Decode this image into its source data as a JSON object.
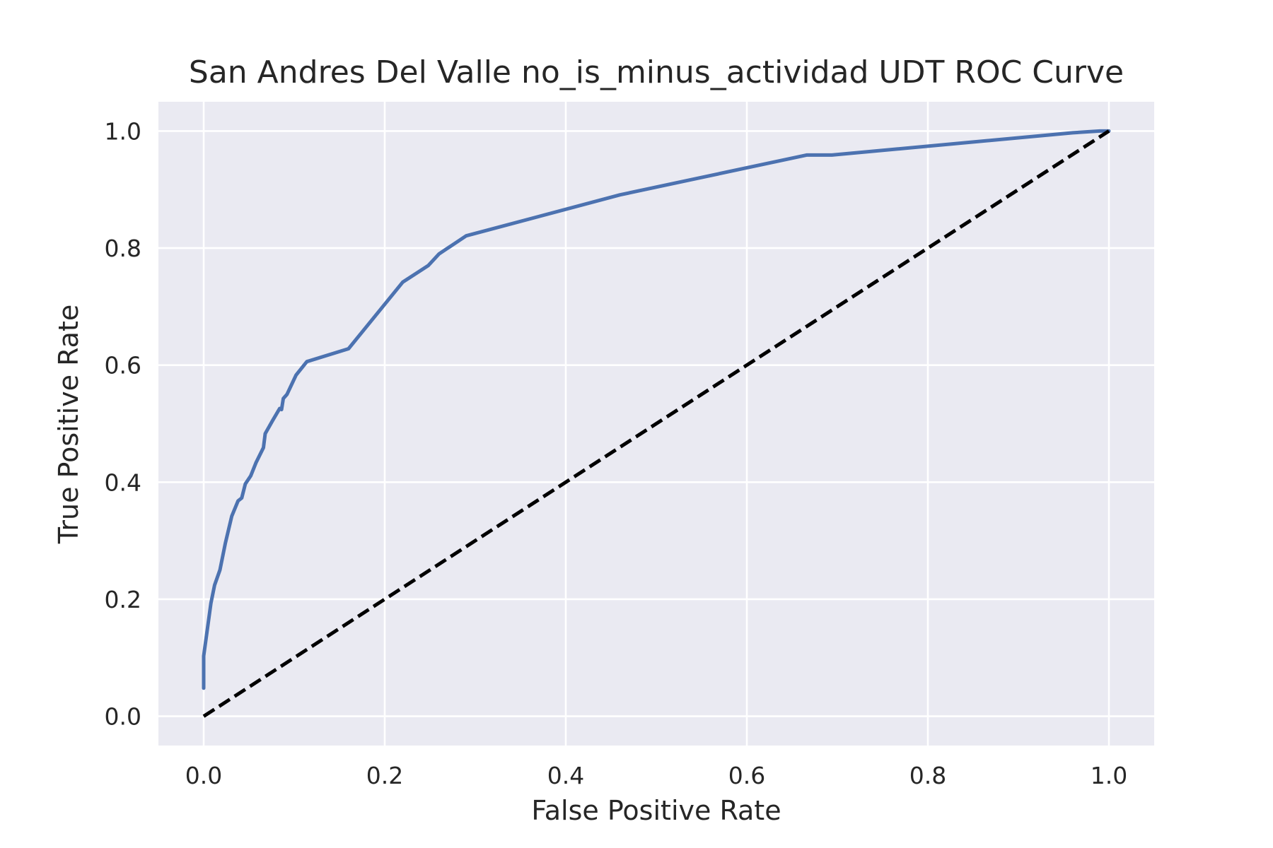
{
  "chart_data": {
    "type": "line",
    "title": "San Andres Del Valle no_is_minus_actividad UDT ROC Curve",
    "xlabel": "False Positive Rate",
    "ylabel": "True Positive Rate",
    "xlim": [
      -0.05,
      1.05
    ],
    "ylim": [
      -0.05,
      1.05
    ],
    "xticks": [
      "0.0",
      "0.2",
      "0.4",
      "0.6",
      "0.8",
      "1.0"
    ],
    "yticks": [
      "0.0",
      "0.2",
      "0.4",
      "0.6",
      "0.8",
      "1.0"
    ],
    "grid": true,
    "background_color": "#eaeaf2",
    "series": [
      {
        "style": "solid",
        "color": "#4c72b0",
        "x": [
          0.0,
          0.0,
          0.0,
          0.008,
          0.012,
          0.018,
          0.024,
          0.031,
          0.038,
          0.042,
          0.046,
          0.052,
          0.058,
          0.066,
          0.068,
          0.076,
          0.084,
          0.086,
          0.088,
          0.092,
          0.102,
          0.114,
          0.16,
          0.22,
          0.248,
          0.26,
          0.29,
          0.46,
          0.666,
          0.694,
          0.96,
          0.99,
          1.0
        ],
        "y": [
          0.048,
          0.065,
          0.103,
          0.193,
          0.224,
          0.25,
          0.296,
          0.342,
          0.368,
          0.373,
          0.397,
          0.411,
          0.434,
          0.459,
          0.483,
          0.505,
          0.526,
          0.524,
          0.543,
          0.55,
          0.583,
          0.606,
          0.628,
          0.742,
          0.77,
          0.79,
          0.821,
          0.891,
          0.959,
          0.959,
          0.997,
          1.0,
          1.0
        ]
      },
      {
        "style": "dashed",
        "color": "#000000",
        "x": [
          0.0,
          1.0
        ],
        "y": [
          0.0,
          1.0
        ]
      }
    ]
  }
}
